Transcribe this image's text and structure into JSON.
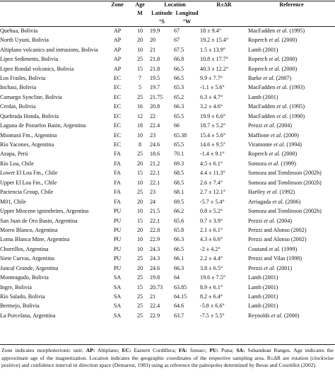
{
  "table": {
    "headers": {
      "zone": "Zone",
      "age": "Age",
      "age_unit": "M",
      "location": "Location",
      "lat": "Latitude",
      "lat_unit": "°S",
      "lon": "Longitud",
      "lon_unit": "°W",
      "rotation": "R±ΔR",
      "reference": "Reference"
    },
    "rows": [
      {
        "loc": "Quehua, Bolivia",
        "zone": "AP",
        "age": "10",
        "lat": "19.9",
        "lon": "67",
        "rot": "18 ± 9.4°",
        "ref": "MacFadden et al. (1995)"
      },
      {
        "loc": "North Uyuni, Bolivia",
        "zone": "AP",
        "age": "20",
        "lat": "20",
        "lon": "67",
        "rot": "19.2 ± 15.4°",
        "ref": "Roperch et al. (2000)"
      },
      {
        "loc": "Altiplano volcanics and intrusions, Bolivia",
        "zone": "AP",
        "age": "10",
        "lat": "21",
        "lon": "67.5",
        "rot": "1.5 ± 13.9°",
        "ref": "Lamb (2001)"
      },
      {
        "loc": "Lipez Sediments, Bolivia",
        "zone": "AP",
        "age": "25",
        "lat": "21.8",
        "lon": "66.8",
        "rot": "10.8 ± 17.7°",
        "ref": "Roperch et al. (2000)"
      },
      {
        "loc": "Lipez Rondal volcanics, Bolivia",
        "zone": "AP",
        "age": "15",
        "lat": "21.8",
        "lon": "66.5",
        "rot": "40.3 ± 12.2°",
        "ref": "Roperch et al. (2000)"
      },
      {
        "loc": "Los Frailes, Bolivia",
        "zone": "EC",
        "age": "7",
        "lat": "19.5",
        "lon": "66.5",
        "rot": "9.9 ± 7.7°",
        "ref": "Barke et al. (2007)"
      },
      {
        "loc": "Inchasi, Bolivia",
        "zone": "EC",
        "age": "5",
        "lat": "19.7",
        "lon": "65.3",
        "rot": "-1.1 ± 5.6°",
        "ref": "MacFadden et al. (1993)"
      },
      {
        "loc": "Camargo Syncline, Bolivia",
        "zone": "EC",
        "age": "25",
        "lat": "21.75",
        "lon": "65.2",
        "rot": "6.3 ± 4.7°",
        "ref": "Lamb (2001)"
      },
      {
        "loc": "Cerdas, Bolivia",
        "zone": "EC",
        "age": "16",
        "lat": "20.8",
        "lon": "66.3",
        "rot": "3.2 ± 4.6°",
        "ref": "MacFadden et al. (1995)"
      },
      {
        "loc": "Quebrada Honda, Bolivia",
        "zone": "EC",
        "age": "12",
        "lat": "22",
        "lon": "65.5",
        "rot": "19.9 ± 6.6°",
        "ref": "MacFadden et al. (1990)"
      },
      {
        "loc": "Laguna de Pozuelos Basin, Argentina",
        "zone": "EC",
        "age": "18",
        "lat": "22.4",
        "lon": "66",
        "rot": "18.7 ± 5.2°",
        "ref": "Prezzi et al. (2004)"
      },
      {
        "loc": "Miomará Fm., Argentina",
        "zone": "EC",
        "age": "10",
        "lat": "23",
        "lon": "65.38",
        "rot": "15.4 ± 5.6°",
        "ref": "Maffione et al. (2009)"
      },
      {
        "loc": "Río Yacones, Argentina",
        "zone": "EC",
        "age": "8",
        "lat": "24.6",
        "lon": "65.5",
        "rot": "14.6 ± 9.5°",
        "ref": "Viramonte et al. (1994)"
      },
      {
        "loc": "Azapa, Perú",
        "zone": "FA",
        "age": "25",
        "lat": "18.6",
        "lon": "70.1",
        "rot": "-1.4 ± 9.1°",
        "ref": "Roperch et al. (2000)"
      },
      {
        "loc": "Río Loa, Chile",
        "zone": "FA",
        "age": "20",
        "lat": "21.2",
        "lon": "69.3",
        "rot": "4.5 ± 6.1°",
        "ref": "Somoza et al. (1999)"
      },
      {
        "loc": "Lower El Loa Fm., Chile",
        "zone": "FA",
        "age": "15",
        "lat": "22.1",
        "lon": "68.5",
        "rot": "4.4 ± 11.3°",
        "ref": "Somoza and Tomlinson (2002b)"
      },
      {
        "loc": "Upper El Loa Fm., Chile",
        "zone": "FA",
        "age": "10",
        "lat": "22.1",
        "lon": "68.5",
        "rot": "2.6 ± 7.4°",
        "ref": "Somoza and Tomlinson (2002b)"
      },
      {
        "loc": "Paciencia Group, Chile",
        "zone": "FA",
        "age": "25",
        "lat": "23",
        "lon": "68.1",
        "rot": "2.7 ± 12.1°",
        "ref": "Hartley et al. (1992)"
      },
      {
        "loc": "M01, Chile",
        "zone": "FA",
        "age": "20",
        "lat": "24",
        "lon": "69.5",
        "rot": "-5.7 ± 5.4°",
        "ref": "Arriagada et al. (2006)"
      },
      {
        "loc": "Upper Miocene ignimbrites, Argentina",
        "zone": "PU",
        "age": "10",
        "lat": "21.5",
        "lon": "66.2",
        "rot": "0.8 ± 5.2°",
        "ref": "Somoza and Tomlinson (2002b)"
      },
      {
        "loc": "San Juan de Oro Basin, Argentina",
        "zone": "PU",
        "age": "15",
        "lat": "22.1",
        "lon": "65.6",
        "rot": "0.7 ± 3.9°",
        "ref": "Prezzi et al. (2004)"
      },
      {
        "loc": "Morro Blanco, Argentina",
        "zone": "PU",
        "age": "20",
        "lat": "22.8",
        "lon": "65.8",
        "rot": "2.1 ± 6.1°",
        "ref": "Prezzi and Alonso (2002)"
      },
      {
        "loc": "Loma Blanca Mine, Argentina",
        "zone": "PU",
        "age": "10",
        "lat": "22.9",
        "lon": "66.3",
        "rot": "4.3 ± 6.6°",
        "ref": "Prezzi and Alonso (2002)"
      },
      {
        "loc": "Chorrillos, Argentina",
        "zone": "PU",
        "age": "10",
        "lat": "24.3",
        "lon": "66.5",
        "rot": "-2 ± 4.2°",
        "ref": "Coutand et al. (1999)"
      },
      {
        "loc": "Siete Curvas, Argentina",
        "zone": "PU",
        "age": "25",
        "lat": "24.3",
        "lon": "66.1",
        "rot": "2.2 ± 4.4°",
        "ref": "Prezzi and Vilas (1998)"
      },
      {
        "loc": "Juncal Grande, Argentina",
        "zone": "PU",
        "age": "20",
        "lat": "24.6",
        "lon": "66.3",
        "rot": "3.8 ± 6.5°",
        "ref": "Prezzi et al. (2001)"
      },
      {
        "loc": "Monteagudo, Bolivia",
        "zone": "SA",
        "age": "25",
        "lat": "19.8",
        "lon": "64",
        "rot": "19.6 ± 7.5°",
        "ref": "Lamb (2001)"
      },
      {
        "loc": "Ingre, Bolivia",
        "zone": "SA",
        "age": "15",
        "lat": "20.73",
        "lon": "63.85",
        "rot": "8.9 ± 6.1°",
        "ref": "Lamb (2001)"
      },
      {
        "loc": "Río Salado, Bolivia",
        "zone": "SA",
        "age": "25",
        "lat": "21",
        "lon": "64.15",
        "rot": "8.2 ± 6.4°",
        "ref": "Lamb (2001)"
      },
      {
        "loc": "Bermejo, Bolivia",
        "zone": "SA",
        "age": "25",
        "lat": "22.4",
        "lon": "64.6",
        "rot": "-5.8 ± 6.6°",
        "ref": "Lamb (2001)"
      },
      {
        "loc": "La Porcelana, Argentina",
        "zone": "SA",
        "age": "25",
        "lat": "22.9",
        "lon": "63.7",
        "rot": "-7.5 ± 5.5°",
        "ref": "Reynolds et al. (2000)"
      }
    ]
  },
  "footnote": {
    "intro": "Zone indicates morphotectonic unit: ",
    "ap_key": "AP:",
    "ap_val": " Altiplano; ",
    "ec_key": "EC:",
    "ec_val": " Eastern Cordillera; ",
    "fa_key": "FA:",
    "fa_val": " forearc; ",
    "pu_key": "PU:",
    "pu_val": " Puna; ",
    "sa_key": "SA:",
    "sa_val": " Subandean Ranges. ",
    "rest": "Age indicates the approximate age of the magnetization. Location indicates the geographic coordinates of the respective sampling area. R±ΔR are rotation (clockwise positive) and confidence interval in direction space (Demarest, 1983) using as reference the paleopoles determined by Besse and Courtillot (2002)."
  }
}
